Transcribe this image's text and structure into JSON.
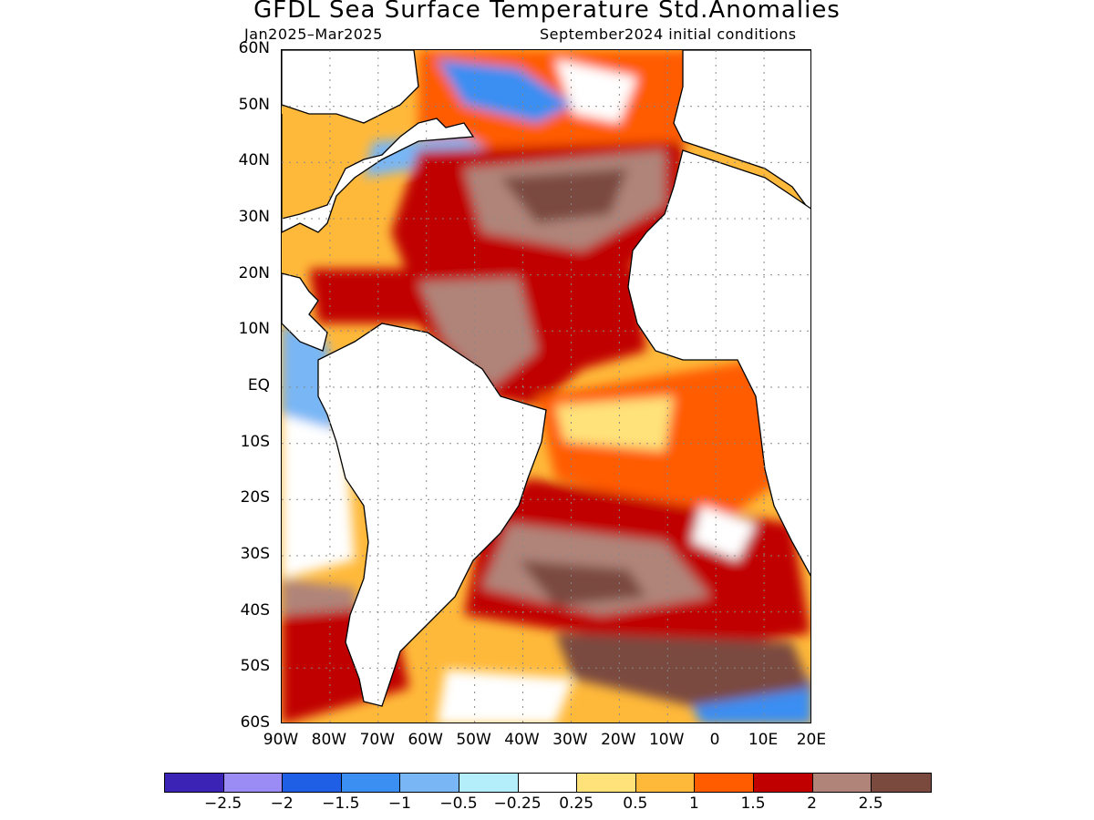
{
  "header": {
    "title": "GFDL Sea Surface Temperature Std.Anomalies",
    "period": "Jan2025–Mar2025",
    "init": "September2024 initial conditions"
  },
  "axes": {
    "lat_labels": [
      "60N",
      "50N",
      "40N",
      "30N",
      "20N",
      "10N",
      "EQ",
      "10S",
      "20S",
      "30S",
      "40S",
      "50S",
      "60S"
    ],
    "lon_labels": [
      "90W",
      "80W",
      "70W",
      "60W",
      "50W",
      "40W",
      "30W",
      "20W",
      "10W",
      "0",
      "10E",
      "20E"
    ],
    "lat_range": [
      -60,
      60
    ],
    "lon_range": [
      -90,
      20
    ],
    "grid": "dotted"
  },
  "colorbar": {
    "colors": [
      "#3b23b5",
      "#9b8cf5",
      "#1e5fe6",
      "#3b8ef2",
      "#78b6f5",
      "#b4eefa",
      "#ffffff",
      "#ffe27a",
      "#ffb93a",
      "#ff5c00",
      "#c00000",
      "#b08479",
      "#7a4a3f"
    ],
    "labels": [
      "−2.5",
      "−2",
      "−1.5",
      "−1",
      "−0.5",
      "−0.25",
      "0.25",
      "0.5",
      "1",
      "1.5",
      "2",
      "2.5"
    ]
  },
  "map_data": {
    "type": "contour-map",
    "variable": "SST standardized anomaly",
    "regions": [
      {
        "name": "tropical-north-atlantic",
        "level": 2.5
      },
      {
        "name": "subtropical-north-atlantic",
        "level": 2.5
      },
      {
        "name": "gulf-of-guinea",
        "level": 1.5
      },
      {
        "name": "south-atlantic-central",
        "level": 2.5
      },
      {
        "name": "labrador-sea",
        "level": -1.5
      },
      {
        "name": "southern-ocean-60s",
        "level": -1
      }
    ]
  }
}
